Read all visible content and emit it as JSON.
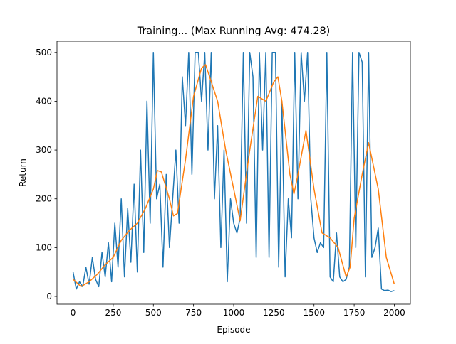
{
  "chart_data": {
    "type": "line",
    "title": "Training... (Max Running Avg: 474.28)",
    "xlabel": "Episode",
    "ylabel": "Return",
    "xlim": [
      -100,
      2100
    ],
    "ylim": [
      -16,
      523
    ],
    "xticks": [
      0,
      250,
      500,
      750,
      1000,
      1250,
      1500,
      1750,
      2000
    ],
    "yticks": [
      0,
      100,
      200,
      300,
      400,
      500
    ],
    "series": [
      {
        "color": "#1f77b4",
        "x": [
          0,
          20,
          40,
          60,
          80,
          100,
          120,
          140,
          160,
          180,
          200,
          220,
          240,
          260,
          280,
          300,
          320,
          340,
          360,
          380,
          400,
          420,
          440,
          460,
          480,
          500,
          520,
          540,
          560,
          580,
          600,
          620,
          640,
          660,
          680,
          700,
          720,
          740,
          760,
          780,
          800,
          820,
          840,
          860,
          880,
          900,
          920,
          940,
          960,
          980,
          1000,
          1020,
          1040,
          1060,
          1080,
          1100,
          1120,
          1140,
          1160,
          1180,
          1200,
          1220,
          1240,
          1260,
          1280,
          1300,
          1320,
          1340,
          1360,
          1380,
          1400,
          1420,
          1440,
          1460,
          1480,
          1500,
          1520,
          1540,
          1560,
          1580,
          1600,
          1620,
          1640,
          1660,
          1680,
          1700,
          1720,
          1740,
          1760,
          1780,
          1800,
          1820,
          1840,
          1860,
          1880,
          1900,
          1920,
          1940,
          1960,
          1980,
          2000
        ],
        "values": [
          50,
          15,
          30,
          20,
          60,
          25,
          80,
          35,
          20,
          90,
          40,
          110,
          30,
          150,
          60,
          200,
          40,
          180,
          70,
          230,
          50,
          300,
          90,
          400,
          150,
          500,
          200,
          230,
          60,
          250,
          100,
          200,
          300,
          150,
          450,
          350,
          500,
          250,
          500,
          500,
          400,
          500,
          300,
          500,
          200,
          350,
          100,
          300,
          30,
          200,
          150,
          130,
          160,
          500,
          150,
          500,
          450,
          80,
          500,
          300,
          500,
          80,
          500,
          500,
          60,
          400,
          40,
          200,
          120,
          500,
          200,
          500,
          400,
          500,
          200,
          120,
          90,
          110,
          100,
          500,
          40,
          30,
          130,
          40,
          30,
          35,
          60,
          500,
          100,
          500,
          480,
          40,
          500,
          80,
          100,
          140,
          15,
          12,
          13,
          10,
          12
        ]
      },
      {
        "color": "#ff7f0e",
        "x": [
          0,
          50,
          100,
          150,
          200,
          250,
          300,
          350,
          400,
          450,
          500,
          525,
          550,
          600,
          625,
          650,
          700,
          750,
          800,
          825,
          850,
          900,
          950,
          1000,
          1040,
          1100,
          1150,
          1200,
          1250,
          1275,
          1300,
          1350,
          1375,
          1400,
          1450,
          1500,
          1550,
          1600,
          1650,
          1700,
          1725,
          1750,
          1800,
          1840,
          1900,
          1950,
          2000
        ],
        "values": [
          35,
          20,
          30,
          45,
          65,
          80,
          115,
          135,
          150,
          180,
          220,
          258,
          255,
          200,
          165,
          170,
          280,
          410,
          468,
          475,
          450,
          400,
          300,
          220,
          155,
          300,
          410,
          400,
          440,
          450,
          400,
          250,
          210,
          250,
          340,
          220,
          130,
          120,
          100,
          40,
          60,
          160,
          250,
          315,
          220,
          80,
          25
        ]
      }
    ]
  }
}
